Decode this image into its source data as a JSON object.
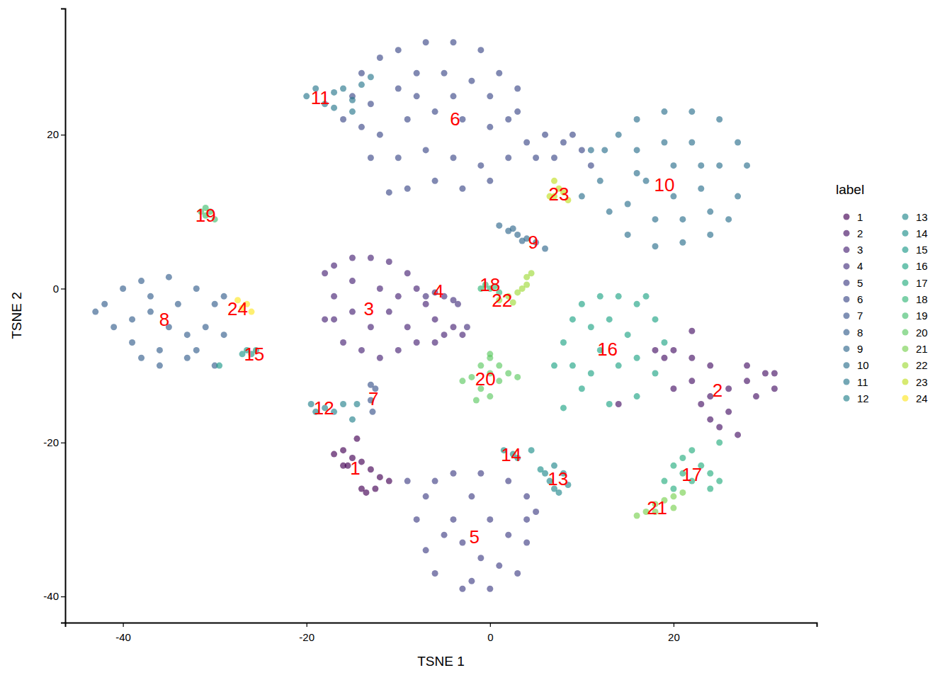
{
  "chart_data": {
    "type": "scatter",
    "x_label": "TSNE 1",
    "y_label": "TSNE 2",
    "xlim": [
      -46.3,
      35.6
    ],
    "ylim": [
      -43.4,
      36.4
    ],
    "xticks": [
      -40,
      -20,
      0,
      20
    ],
    "yticks": [
      -40,
      -20,
      0,
      20
    ],
    "grid": false,
    "legend": "right",
    "legend_title": "label",
    "marker": "circle",
    "series": [
      {
        "name": "1",
        "color": "#440154",
        "x": [
          -17,
          -16,
          -15,
          -14,
          -14.5,
          -13,
          -12,
          -11,
          -14,
          -13.5,
          -15.5,
          -12.5,
          -16
        ],
        "y": [
          -21.5,
          -21,
          -22,
          -22.5,
          -19.5,
          -23.5,
          -24.5,
          -25,
          -26,
          -26.5,
          -23,
          -26,
          -23
        ]
      },
      {
        "name": "2",
        "color": "#471365",
        "x": [
          19,
          20,
          22,
          24,
          22,
          20,
          24,
          26,
          28,
          30,
          31,
          29,
          26,
          25,
          27,
          24,
          23,
          28,
          22,
          14,
          18,
          31
        ],
        "y": [
          -9,
          -8,
          -9,
          -10,
          -12,
          -13,
          -14,
          -13,
          -12,
          -11,
          -13,
          -14,
          -16,
          -18,
          -19,
          -17,
          -15,
          -10,
          -5.5,
          -15,
          -8,
          -11
        ]
      },
      {
        "name": "3",
        "color": "#482475",
        "x": [
          -18,
          -17,
          -15,
          -13,
          -11,
          -9,
          -8,
          -7,
          -6,
          -5,
          -17,
          -17,
          -16,
          -14,
          -12,
          -10,
          -8,
          -15,
          -13,
          -11,
          -9,
          -12,
          -15,
          -10,
          -6,
          -4,
          -18,
          -3
        ],
        "y": [
          2,
          3,
          4,
          4,
          3.5,
          2,
          0,
          -2,
          -4,
          -6,
          -1,
          -4,
          -7,
          -8,
          -9,
          -8,
          -7,
          -3,
          -5,
          -3,
          -5,
          0,
          1,
          -1,
          -7,
          -5,
          -4,
          -6
        ]
      },
      {
        "name": "4",
        "color": "#46337e",
        "x": [
          -6,
          -5,
          -4,
          -3.5,
          -2.5,
          -7
        ],
        "y": [
          -0.5,
          -1,
          -1.5,
          -2,
          -5,
          -1
        ]
      },
      {
        "name": "5",
        "color": "#424086",
        "x": [
          -6,
          -4,
          -1,
          2,
          4,
          -7,
          -8,
          -7,
          -6,
          -3,
          0,
          3,
          4,
          4,
          -2,
          -4,
          0,
          2,
          -3,
          -1,
          1,
          -5,
          -9,
          5,
          -2
        ],
        "y": [
          -25,
          -24,
          -24,
          -25,
          -27,
          -27,
          -30,
          -34,
          -37,
          -39,
          -39,
          -37,
          -33,
          -30,
          -27,
          -30,
          -30,
          -32,
          -33,
          -35,
          -36,
          -32,
          -25,
          -29,
          -38
        ]
      },
      {
        "name": "6",
        "color": "#3e4a89",
        "x": [
          -14,
          -12,
          -10,
          -7,
          -4,
          -1,
          1,
          3,
          -15,
          -13,
          -10,
          -8,
          -5,
          -2,
          0,
          -12,
          -9,
          -6,
          -3,
          0,
          2,
          -13,
          -10,
          -7,
          -4,
          -1,
          2,
          4,
          6,
          8,
          10,
          -16,
          -6,
          -3,
          0,
          -9,
          -11,
          5,
          7,
          9,
          11,
          -8,
          -4,
          -14,
          3
        ],
        "y": [
          28,
          30,
          31,
          32,
          32,
          31,
          28,
          26,
          25,
          24,
          26,
          28,
          28,
          27,
          25,
          20,
          22,
          23,
          22,
          21,
          22,
          17,
          17,
          18,
          17,
          16,
          17,
          19,
          20,
          19,
          18,
          22,
          14,
          13,
          14,
          13,
          12.5,
          17,
          17,
          20,
          16,
          25,
          25,
          21,
          23
        ]
      },
      {
        "name": "7",
        "color": "#3a548c",
        "x": [
          -13,
          -12.5,
          -13,
          -12.8
        ],
        "y": [
          -12.5,
          -13,
          -14.5,
          -16
        ]
      },
      {
        "name": "8",
        "color": "#355f8d",
        "x": [
          -42,
          -41,
          -40,
          -39,
          -38,
          -37,
          -36,
          -35,
          -35,
          -34,
          -33,
          -32,
          -31,
          -30,
          -29,
          -33,
          -37,
          -39,
          -43,
          -36,
          -30,
          -29,
          -32,
          -38
        ],
        "y": [
          -2,
          -5,
          0,
          -7,
          1,
          -3,
          -8,
          1.5,
          -5,
          -2,
          -9,
          0,
          -5,
          -2,
          -6,
          -6,
          -1,
          -4,
          -3,
          -10,
          -10,
          -1,
          -8,
          -9
        ]
      },
      {
        "name": "9",
        "color": "#31688e",
        "x": [
          1,
          2,
          3,
          4,
          5,
          6,
          3.5,
          2.5
        ],
        "y": [
          8.2,
          7.5,
          7,
          6.5,
          6,
          5.2,
          6.2,
          7.8
        ]
      },
      {
        "name": "10",
        "color": "#2d708e",
        "x": [
          14,
          16,
          19,
          22,
          25,
          27,
          28,
          27,
          26,
          24,
          21,
          18,
          15,
          13,
          12,
          12.5,
          16,
          19,
          22,
          25,
          23,
          20,
          17,
          15,
          18,
          21,
          24,
          16,
          20,
          23,
          11,
          10
        ],
        "y": [
          20,
          22,
          23,
          23,
          22,
          19,
          16,
          12,
          9,
          7,
          6,
          5.5,
          7,
          10,
          14,
          18,
          18,
          19,
          19,
          16,
          13,
          12,
          14,
          11,
          9,
          9,
          10,
          15,
          16,
          16,
          18,
          12
        ]
      },
      {
        "name": "11",
        "color": "#2a788e",
        "x": [
          -20,
          -19,
          -18,
          -17,
          -16,
          -15,
          -14,
          -13,
          -15,
          -17
        ],
        "y": [
          25,
          26,
          24,
          25.5,
          26,
          24.5,
          26.5,
          27.5,
          23,
          23.5
        ]
      },
      {
        "name": "12",
        "color": "#26828e",
        "x": [
          -19,
          -18,
          -17,
          -16,
          -15,
          -19.5,
          -14.5
        ],
        "y": [
          -16,
          -15.5,
          -16,
          -15,
          -17,
          -15,
          -15
        ]
      },
      {
        "name": "13",
        "color": "#23898e",
        "x": [
          6,
          7,
          8,
          8.5,
          7,
          7.5,
          6.5
        ],
        "y": [
          -24,
          -23,
          -24,
          -25.5,
          -26,
          -26.5,
          -25
        ]
      },
      {
        "name": "14",
        "color": "#21918c",
        "x": [
          1.5,
          2.5,
          3,
          4.5,
          5.5
        ],
        "y": [
          -21,
          -21.5,
          -22,
          -21,
          -23.5
        ]
      },
      {
        "name": "15",
        "color": "#1f9a8a",
        "x": [
          -26.5,
          -26,
          -25.5,
          -27,
          -29.5
        ],
        "y": [
          -8,
          -8.5,
          -8,
          -8.5,
          -10
        ]
      },
      {
        "name": "16",
        "color": "#20a486",
        "x": [
          10,
          12,
          14,
          16,
          18,
          19,
          18,
          16,
          13,
          10,
          9,
          8,
          9,
          11,
          13,
          15,
          12,
          14,
          16,
          11,
          7,
          8,
          17
        ],
        "y": [
          -2,
          -1,
          -1,
          -2,
          -4,
          -7,
          -11,
          -14,
          -15,
          -13,
          -10,
          -7,
          -4,
          -5,
          -4,
          -6,
          -8,
          -10,
          -9,
          -11,
          -10,
          -15.5,
          -1
        ]
      },
      {
        "name": "17",
        "color": "#28ae80",
        "x": [
          19,
          20,
          21,
          22,
          23,
          24,
          25,
          21,
          20,
          24,
          22,
          25
        ],
        "y": [
          -25,
          -23,
          -24,
          -25,
          -23,
          -24,
          -25,
          -22,
          -26,
          -26,
          -21,
          -20
        ]
      },
      {
        "name": "18",
        "color": "#35b779",
        "x": [
          -0.5,
          0,
          0.5,
          1,
          -1
        ],
        "y": [
          0.5,
          0,
          0.3,
          -0.5,
          0
        ]
      },
      {
        "name": "19",
        "color": "#44bf70",
        "x": [
          -31.5,
          -31,
          -30.5,
          -30,
          -31
        ],
        "y": [
          10,
          9.5,
          10,
          9,
          10.5
        ]
      },
      {
        "name": "20",
        "color": "#5ec962",
        "x": [
          -2,
          -1,
          0,
          0,
          1,
          -1,
          0,
          2,
          -3,
          1,
          0,
          -1.5,
          3
        ],
        "y": [
          -11.5,
          -10,
          -9,
          -11,
          -12,
          -13,
          -14,
          -11,
          -12,
          -10,
          -8.5,
          -14.5,
          -11.5
        ]
      },
      {
        "name": "21",
        "color": "#7ad151",
        "x": [
          16,
          17,
          18,
          19,
          20,
          18,
          20,
          21
        ],
        "y": [
          -29.5,
          -29,
          -28,
          -27.5,
          -27,
          -29,
          -28.5,
          -26.5
        ]
      },
      {
        "name": "22",
        "color": "#9fda3a",
        "x": [
          1,
          2,
          3,
          3.5,
          2.5,
          4,
          4,
          4.5
        ],
        "y": [
          -1.5,
          -1,
          -0.5,
          0,
          -1.8,
          0.5,
          1.5,
          2
        ]
      },
      {
        "name": "23",
        "color": "#c2df23",
        "x": [
          7,
          7.5,
          8,
          6.5,
          8.5,
          7
        ],
        "y": [
          12,
          13,
          12.5,
          12,
          11.5,
          14
        ]
      },
      {
        "name": "24",
        "color": "#fde725",
        "x": [
          -27,
          -26.5,
          -27.5,
          -26
        ],
        "y": [
          -2.5,
          -2,
          -1.5,
          -3
        ]
      }
    ],
    "annotations": [
      {
        "text": "1",
        "x": -14.7,
        "y": -23.3
      },
      {
        "text": "2",
        "x": 24.8,
        "y": -13.2
      },
      {
        "text": "3",
        "x": -13.2,
        "y": -2.6
      },
      {
        "text": "4",
        "x": -5.6,
        "y": -0.3
      },
      {
        "text": "5",
        "x": -1.7,
        "y": -32.3
      },
      {
        "text": "6",
        "x": -3.8,
        "y": 22
      },
      {
        "text": "7",
        "x": -12.7,
        "y": -14.3
      },
      {
        "text": "8",
        "x": -35.5,
        "y": -4
      },
      {
        "text": "9",
        "x": 4.7,
        "y": 6
      },
      {
        "text": "10",
        "x": 19,
        "y": 13.5
      },
      {
        "text": "11",
        "x": -18.5,
        "y": 24.8
      },
      {
        "text": "12",
        "x": -18.1,
        "y": -15.5
      },
      {
        "text": "13",
        "x": 7.4,
        "y": -24.7
      },
      {
        "text": "14",
        "x": 2.3,
        "y": -21.6
      },
      {
        "text": "15",
        "x": -25.7,
        "y": -8.5
      },
      {
        "text": "16",
        "x": 12.8,
        "y": -7.9
      },
      {
        "text": "17",
        "x": 22,
        "y": -24.2
      },
      {
        "text": "18",
        "x": 0,
        "y": 0.5
      },
      {
        "text": "19",
        "x": -31,
        "y": 9.5
      },
      {
        "text": "20",
        "x": -0.5,
        "y": -11.7
      },
      {
        "text": "21",
        "x": 18.2,
        "y": -28.5
      },
      {
        "text": "22",
        "x": 1.3,
        "y": -1.5
      },
      {
        "text": "23",
        "x": 7.5,
        "y": 12.3
      },
      {
        "text": "24",
        "x": -27.5,
        "y": -2.6
      }
    ]
  }
}
